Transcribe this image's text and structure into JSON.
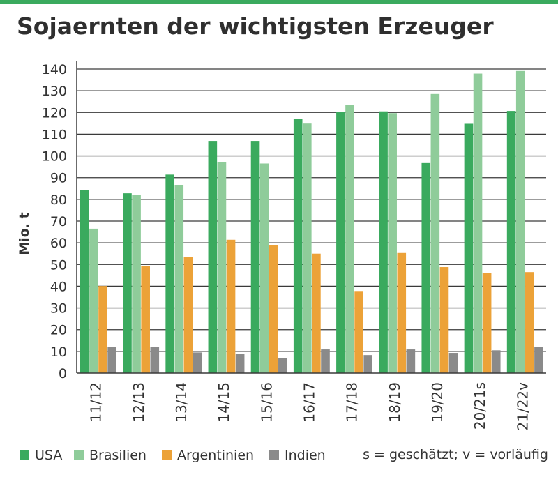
{
  "title": "Sojaernten der wichtigsten Erzeuger",
  "colors": {
    "accent_bar": "#3aaa5e",
    "usa": "#3aaa5e",
    "brasilien": "#8fcc9a",
    "argentinien": "#eca238",
    "indien": "#8a8a8a"
  },
  "note": "s = geschätzt; v = vorläufig",
  "legend": [
    "USA",
    "Brasilien",
    "Argentinien",
    "Indien"
  ],
  "chart_data": {
    "type": "bar",
    "title": "Sojaernten der wichtigsten Erzeuger",
    "xlabel": "",
    "ylabel": "Mio. t",
    "ylim": [
      0,
      140
    ],
    "yticks": [
      0,
      10,
      20,
      30,
      40,
      50,
      60,
      70,
      80,
      90,
      100,
      110,
      120,
      130,
      140
    ],
    "grid": "horizontal",
    "legend_position": "bottom",
    "categories": [
      "11/12",
      "12/13",
      "13/14",
      "14/15",
      "15/16",
      "16/17",
      "17/18",
      "18/19",
      "19/20",
      "20/21s",
      "21/22v"
    ],
    "series": [
      {
        "name": "USA",
        "values": [
          84.3,
          82.8,
          91.4,
          106.9,
          106.9,
          116.9,
          120.1,
          120.5,
          96.7,
          114.8,
          120.7
        ]
      },
      {
        "name": "Brasilien",
        "values": [
          66.5,
          82.0,
          86.7,
          97.2,
          96.5,
          114.9,
          123.4,
          119.7,
          128.5,
          137.9,
          139.1
        ]
      },
      {
        "name": "Argentinien",
        "values": [
          40.1,
          49.3,
          53.4,
          61.4,
          58.8,
          55.0,
          37.8,
          55.3,
          48.8,
          46.2,
          46.5
        ]
      },
      {
        "name": "Indien",
        "values": [
          12.2,
          12.2,
          9.5,
          8.7,
          6.9,
          10.9,
          8.3,
          10.9,
          9.3,
          10.5,
          12.0
        ]
      }
    ]
  }
}
